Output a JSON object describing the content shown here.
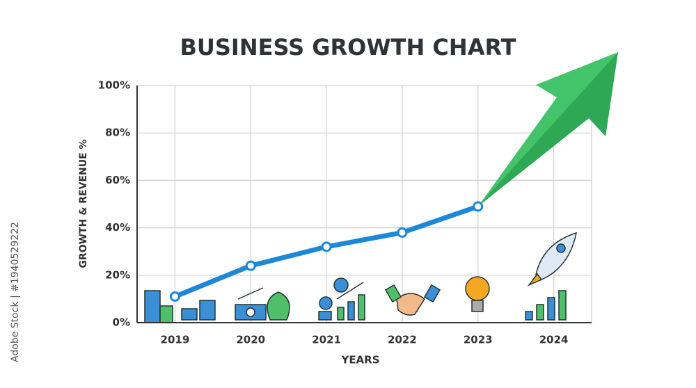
{
  "chart_data": {
    "type": "line",
    "title": "BUSINESS GROWTH CHART",
    "x_label": "YEARS",
    "y_label": "GROWTH & REVENUE %",
    "watermark": "Adobe Stock | #1940529222",
    "categories": [
      "2019",
      "2020",
      "2021",
      "2022",
      "2023",
      "2024"
    ],
    "series": [
      {
        "name": "Growth",
        "color": "#1e88d8",
        "values": [
          11,
          24,
          32,
          38,
          49,
          null
        ]
      }
    ],
    "ylim": [
      0,
      100
    ],
    "yticks": [
      {
        "value": 0,
        "label": "0%"
      },
      {
        "value": 20,
        "label": "20%"
      },
      {
        "value": 40,
        "label": "40%"
      },
      {
        "value": 60,
        "label": "60%"
      },
      {
        "value": 80,
        "label": "80%"
      },
      {
        "value": 100,
        "label": "100%"
      }
    ],
    "grid": true
  }
}
